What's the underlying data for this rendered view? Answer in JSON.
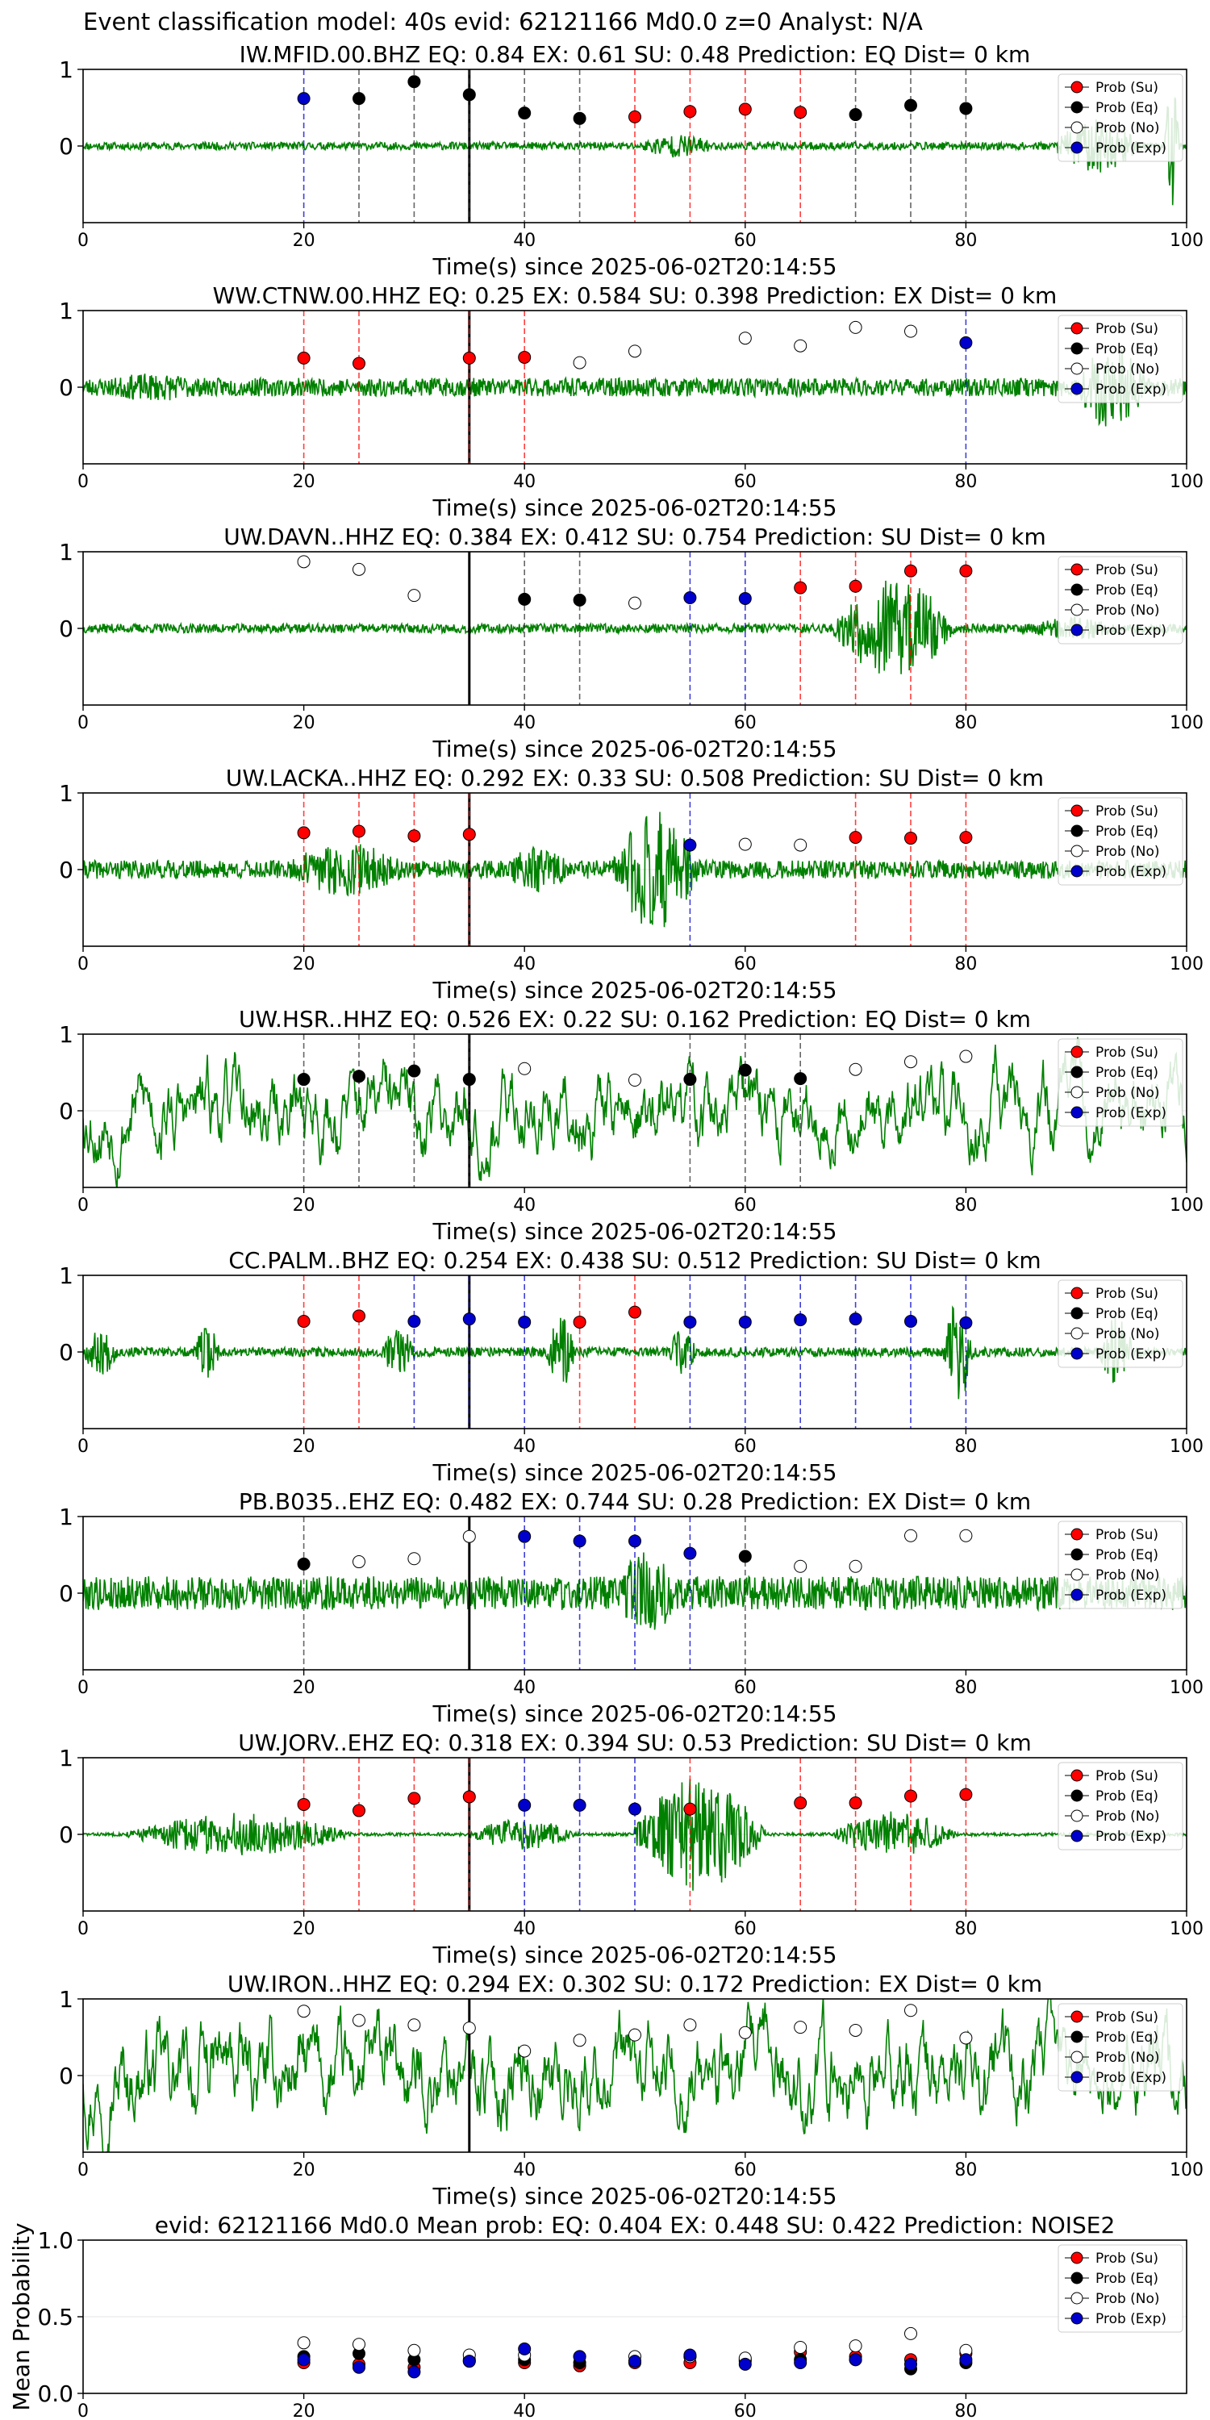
{
  "figure_title": "Event classification model: 40s evid: 62121166 Md0.0 z=0 Analyst: N/A",
  "xlabel": "Time(s) since 2025-06-02T20:14:55",
  "legend_labels": [
    "Prob (Su)",
    "Prob (Eq)",
    "Prob (No)",
    "Prob (Exp)"
  ],
  "colors": {
    "Su": "#ff0000",
    "Eq": "#000000",
    "No": "#ffffff",
    "Exp": "#0000cc",
    "trace": "#008000",
    "pick": "#000000"
  },
  "chart_data": [
    {
      "type": "line",
      "station": "IW.MFID.00.BHZ",
      "title": "IW.MFID.00.BHZ   EQ: 0.84  EX: 0.61  SU: 0.48   Prediction: EQ    Dist= 0 km",
      "xlim": [
        0,
        100
      ],
      "ylim": [
        -1,
        1
      ],
      "xticks": [
        0,
        20,
        40,
        60,
        80,
        100
      ],
      "yticks": [
        0,
        1
      ],
      "pick_time": 35,
      "points": [
        [
          20,
          0.62,
          "Exp"
        ],
        [
          25,
          0.62,
          "Eq"
        ],
        [
          30,
          0.84,
          "Eq"
        ],
        [
          35,
          0.67,
          "Eq"
        ],
        [
          40,
          0.43,
          "Eq"
        ],
        [
          45,
          0.36,
          "Eq"
        ],
        [
          50,
          0.38,
          "Su"
        ],
        [
          55,
          0.45,
          "Su"
        ],
        [
          60,
          0.48,
          "Su"
        ],
        [
          65,
          0.44,
          "Su"
        ],
        [
          70,
          0.41,
          "Eq"
        ],
        [
          75,
          0.53,
          "Eq"
        ],
        [
          80,
          0.49,
          "Eq"
        ]
      ],
      "waveform": {
        "seed": 11,
        "base": 0.05,
        "bursts": [
          [
            88,
            100,
            0.35
          ],
          [
            98,
            100,
            0.9
          ],
          [
            50,
            62,
            0.15
          ]
        ]
      }
    },
    {
      "type": "line",
      "station": "WW.CTNW.00.HHZ",
      "title": "WW.CTNW.00.HHZ   EQ: 0.25  EX: 0.584  SU: 0.398   Prediction: EX    Dist= 0 km",
      "xlim": [
        0,
        100
      ],
      "ylim": [
        -1,
        1
      ],
      "xticks": [
        0,
        20,
        40,
        60,
        80,
        100
      ],
      "yticks": [
        0,
        1
      ],
      "pick_time": 35,
      "points": [
        [
          20,
          0.38,
          "Su"
        ],
        [
          25,
          0.31,
          "Su"
        ],
        [
          35,
          0.38,
          "Su"
        ],
        [
          40,
          0.39,
          "Su"
        ],
        [
          45,
          0.32,
          "No"
        ],
        [
          50,
          0.47,
          "No"
        ],
        [
          60,
          0.64,
          "No"
        ],
        [
          65,
          0.54,
          "No"
        ],
        [
          70,
          0.78,
          "No"
        ],
        [
          75,
          0.73,
          "No"
        ],
        [
          80,
          0.58,
          "Exp"
        ]
      ],
      "waveform": {
        "seed": 23,
        "base": 0.12,
        "bursts": [
          [
            0,
            20,
            0.18
          ],
          [
            90,
            100,
            0.55
          ]
        ]
      }
    },
    {
      "type": "line",
      "station": "UW.DAVN..HHZ",
      "title": "UW.DAVN..HHZ   EQ: 0.384  EX: 0.412  SU: 0.754   Prediction: SU    Dist= 0 km",
      "xlim": [
        0,
        100
      ],
      "ylim": [
        -1,
        1
      ],
      "xticks": [
        0,
        20,
        40,
        60,
        80,
        100
      ],
      "yticks": [
        0,
        1
      ],
      "pick_time": 35,
      "points": [
        [
          20,
          0.87,
          "No"
        ],
        [
          25,
          0.77,
          "No"
        ],
        [
          30,
          0.43,
          "No"
        ],
        [
          40,
          0.38,
          "Eq"
        ],
        [
          45,
          0.37,
          "Eq"
        ],
        [
          50,
          0.33,
          "No"
        ],
        [
          55,
          0.4,
          "Exp"
        ],
        [
          60,
          0.39,
          "Exp"
        ],
        [
          65,
          0.53,
          "Su"
        ],
        [
          70,
          0.55,
          "Su"
        ],
        [
          75,
          0.75,
          "Su"
        ],
        [
          80,
          0.75,
          "Su"
        ]
      ],
      "waveform": {
        "seed": 37,
        "base": 0.06,
        "bursts": [
          [
            68,
            85,
            0.65
          ],
          [
            85,
            100,
            0.15
          ]
        ]
      }
    },
    {
      "type": "line",
      "station": "UW.LACKA..HHZ",
      "title": "UW.LACKA..HHZ   EQ: 0.292  EX: 0.33  SU: 0.508   Prediction: SU    Dist= 0 km",
      "xlim": [
        0,
        100
      ],
      "ylim": [
        -1,
        1
      ],
      "xticks": [
        0,
        20,
        40,
        60,
        80,
        100
      ],
      "yticks": [
        0,
        1
      ],
      "pick_time": 35,
      "points": [
        [
          20,
          0.48,
          "Su"
        ],
        [
          25,
          0.5,
          "Su"
        ],
        [
          30,
          0.44,
          "Su"
        ],
        [
          35,
          0.46,
          "Su"
        ],
        [
          55,
          0.32,
          "Exp"
        ],
        [
          60,
          0.33,
          "No"
        ],
        [
          65,
          0.32,
          "No"
        ],
        [
          70,
          0.42,
          "Su"
        ],
        [
          75,
          0.41,
          "Su"
        ],
        [
          80,
          0.42,
          "Su"
        ]
      ],
      "waveform": {
        "seed": 41,
        "base": 0.12,
        "bursts": [
          [
            18,
            36,
            0.35
          ],
          [
            48,
            60,
            0.8
          ],
          [
            38,
            48,
            0.3
          ]
        ]
      }
    },
    {
      "type": "line",
      "station": "UW.HSR..HHZ",
      "title": "UW.HSR..HHZ   EQ: 0.526  EX: 0.22  SU: 0.162   Prediction: EQ    Dist= 0 km",
      "xlim": [
        0,
        100
      ],
      "ylim": [
        -1,
        1
      ],
      "xticks": [
        0,
        20,
        40,
        60,
        80,
        100
      ],
      "yticks": [
        0,
        1
      ],
      "pick_time": 35,
      "points": [
        [
          20,
          0.41,
          "Eq"
        ],
        [
          25,
          0.45,
          "Eq"
        ],
        [
          30,
          0.52,
          "Eq"
        ],
        [
          35,
          0.41,
          "Eq"
        ],
        [
          40,
          0.55,
          "No"
        ],
        [
          50,
          0.4,
          "No"
        ],
        [
          55,
          0.41,
          "Eq"
        ],
        [
          60,
          0.53,
          "Eq"
        ],
        [
          65,
          0.42,
          "Eq"
        ],
        [
          70,
          0.54,
          "No"
        ],
        [
          75,
          0.64,
          "No"
        ],
        [
          80,
          0.71,
          "No"
        ]
      ],
      "waveform": {
        "seed": 53,
        "base": 0.45,
        "bursts": [],
        "smooth": true
      }
    },
    {
      "type": "line",
      "station": "CC.PALM..BHZ",
      "title": "CC.PALM..BHZ   EQ: 0.254  EX: 0.438  SU: 0.512   Prediction: SU    Dist= 0 km",
      "xlim": [
        0,
        100
      ],
      "ylim": [
        -1,
        1
      ],
      "xticks": [
        0,
        20,
        40,
        60,
        80,
        100
      ],
      "yticks": [
        0,
        1
      ],
      "pick_time": 35,
      "points": [
        [
          20,
          0.4,
          "Su"
        ],
        [
          25,
          0.47,
          "Su"
        ],
        [
          30,
          0.4,
          "Exp"
        ],
        [
          35,
          0.43,
          "Exp"
        ],
        [
          40,
          0.39,
          "Exp"
        ],
        [
          45,
          0.39,
          "Su"
        ],
        [
          50,
          0.52,
          "Su"
        ],
        [
          55,
          0.39,
          "Exp"
        ],
        [
          60,
          0.39,
          "Exp"
        ],
        [
          65,
          0.42,
          "Exp"
        ],
        [
          70,
          0.43,
          "Exp"
        ],
        [
          75,
          0.4,
          "Exp"
        ],
        [
          80,
          0.38,
          "Exp"
        ]
      ],
      "waveform": {
        "seed": 67,
        "base": 0.06,
        "bursts": [
          [
            0,
            5,
            0.3
          ],
          [
            10,
            14,
            0.35
          ],
          [
            27,
            32,
            0.35
          ],
          [
            42,
            46,
            0.5
          ],
          [
            53,
            57,
            0.3
          ],
          [
            78,
            82,
            0.7
          ],
          [
            92,
            97,
            0.45
          ]
        ]
      }
    },
    {
      "type": "line",
      "station": "PB.B035..EHZ",
      "title": "PB.B035..EHZ   EQ: 0.482  EX: 0.744  SU: 0.28   Prediction: EX    Dist= 0 km",
      "xlim": [
        0,
        100
      ],
      "ylim": [
        -1,
        1
      ],
      "xticks": [
        0,
        20,
        40,
        60,
        80,
        100
      ],
      "yticks": [
        0,
        1
      ],
      "pick_time": 35,
      "points": [
        [
          20,
          0.38,
          "Eq"
        ],
        [
          25,
          0.41,
          "No"
        ],
        [
          30,
          0.45,
          "No"
        ],
        [
          35,
          0.74,
          "No"
        ],
        [
          40,
          0.74,
          "Exp"
        ],
        [
          45,
          0.68,
          "Exp"
        ],
        [
          50,
          0.68,
          "Exp"
        ],
        [
          55,
          0.52,
          "Exp"
        ],
        [
          60,
          0.48,
          "Eq"
        ],
        [
          65,
          0.35,
          "No"
        ],
        [
          70,
          0.35,
          "No"
        ],
        [
          75,
          0.75,
          "No"
        ],
        [
          80,
          0.75,
          "No"
        ]
      ],
      "waveform": {
        "seed": 79,
        "base": 0.22,
        "bursts": [
          [
            48,
            58,
            0.55
          ]
        ]
      }
    },
    {
      "type": "line",
      "station": "UW.JORV..EHZ",
      "title": "UW.JORV..EHZ   EQ: 0.318  EX: 0.394  SU: 0.53   Prediction: SU    Dist= 0 km",
      "xlim": [
        0,
        100
      ],
      "ylim": [
        -1,
        1
      ],
      "xticks": [
        0,
        20,
        40,
        60,
        80,
        100
      ],
      "yticks": [
        0,
        1
      ],
      "pick_time": 35,
      "points": [
        [
          20,
          0.39,
          "Su"
        ],
        [
          25,
          0.31,
          "Su"
        ],
        [
          30,
          0.47,
          "Su"
        ],
        [
          35,
          0.49,
          "Su"
        ],
        [
          40,
          0.38,
          "Exp"
        ],
        [
          45,
          0.38,
          "Exp"
        ],
        [
          50,
          0.33,
          "Exp"
        ],
        [
          55,
          0.33,
          "Su"
        ],
        [
          65,
          0.41,
          "Su"
        ],
        [
          70,
          0.41,
          "Su"
        ],
        [
          75,
          0.5,
          "Su"
        ],
        [
          80,
          0.52,
          "Su"
        ]
      ],
      "waveform": {
        "seed": 83,
        "base": 0.02,
        "bursts": [
          [
            4,
            35,
            0.28
          ],
          [
            35,
            50,
            0.2
          ],
          [
            50,
            68,
            0.75
          ],
          [
            68,
            85,
            0.3
          ]
        ]
      }
    },
    {
      "type": "line",
      "station": "UW.IRON..HHZ",
      "title": "UW.IRON..HHZ   EQ: 0.294  EX: 0.302  SU: 0.172   Prediction: EX    Dist= 0 km",
      "xlim": [
        0,
        100
      ],
      "ylim": [
        -1,
        1
      ],
      "xticks": [
        0,
        20,
        40,
        60,
        80,
        100
      ],
      "yticks": [
        0,
        1
      ],
      "pick_time": 35,
      "points": [
        [
          20,
          0.84,
          "No"
        ],
        [
          25,
          0.72,
          "No"
        ],
        [
          30,
          0.66,
          "No"
        ],
        [
          35,
          0.62,
          "No"
        ],
        [
          40,
          0.32,
          "No"
        ],
        [
          45,
          0.46,
          "No"
        ],
        [
          50,
          0.53,
          "No"
        ],
        [
          55,
          0.66,
          "No"
        ],
        [
          60,
          0.56,
          "No"
        ],
        [
          65,
          0.63,
          "No"
        ],
        [
          70,
          0.59,
          "No"
        ],
        [
          75,
          0.85,
          "No"
        ],
        [
          80,
          0.49,
          "No"
        ]
      ],
      "waveform": {
        "seed": 97,
        "base": 0.5,
        "bursts": [],
        "smooth": true
      }
    },
    {
      "type": "scatter",
      "station": "mean",
      "title": "evid: 62121166  Md0.0   Mean prob:    EQ: 0.404  EX: 0.448  SU: 0.422   Prediction: NOISE2",
      "ylabel": "Mean Probability",
      "xlim": [
        0,
        100
      ],
      "ylim": [
        0,
        1
      ],
      "xticks": [
        0,
        20,
        40,
        60,
        80
      ],
      "yticks": [
        0,
        0.5,
        1
      ],
      "ytick_labels": [
        "0.0",
        "0.5",
        "1.0"
      ],
      "series": [
        {
          "name": "Prob (Su)",
          "key": "Su",
          "x": [
            20,
            25,
            30,
            35,
            40,
            45,
            50,
            55,
            60,
            65,
            70,
            75,
            80
          ],
          "y": [
            0.2,
            0.19,
            0.17,
            0.21,
            0.2,
            0.18,
            0.2,
            0.2,
            0.21,
            0.27,
            0.24,
            0.22,
            0.26
          ]
        },
        {
          "name": "Prob (Eq)",
          "key": "Eq",
          "x": [
            20,
            25,
            30,
            35,
            40,
            45,
            50,
            55,
            60,
            65,
            70,
            75,
            80
          ],
          "y": [
            0.24,
            0.26,
            0.22,
            0.22,
            0.22,
            0.2,
            0.21,
            0.24,
            0.22,
            0.22,
            0.22,
            0.16,
            0.2
          ]
        },
        {
          "name": "Prob (No)",
          "key": "No",
          "x": [
            20,
            25,
            30,
            35,
            40,
            45,
            50,
            55,
            60,
            65,
            70,
            75,
            80
          ],
          "y": [
            0.33,
            0.32,
            0.28,
            0.25,
            0.25,
            0.24,
            0.24,
            0.24,
            0.23,
            0.3,
            0.31,
            0.39,
            0.28
          ]
        },
        {
          "name": "Prob (Exp)",
          "key": "Exp",
          "x": [
            20,
            25,
            30,
            35,
            40,
            45,
            50,
            55,
            60,
            65,
            70,
            75,
            80
          ],
          "y": [
            0.22,
            0.17,
            0.14,
            0.21,
            0.29,
            0.24,
            0.21,
            0.25,
            0.19,
            0.2,
            0.22,
            0.19,
            0.22
          ]
        }
      ]
    }
  ]
}
